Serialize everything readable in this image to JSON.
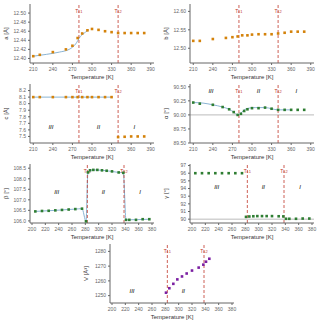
{
  "chart_data": [
    {
      "type": "scatter",
      "xlabel": "Temperature [K]",
      "ylabel": "a [Å]",
      "xlim": [
        205,
        395
      ],
      "xticks": [
        210,
        240,
        270,
        300,
        330,
        360,
        390
      ],
      "ylim": [
        12.39,
        12.52
      ],
      "yticks": [
        {
          "value": 12.4,
          "label": "12.40"
        },
        12.42,
        12.44,
        12.46,
        12.48,
        {
          "value": 12.5,
          "label": "12.50"
        }
      ],
      "grid": false,
      "series": [
        {
          "type": "line",
          "color": "#8ab4d4",
          "line_style": "solid",
          "x": [
            210,
            230,
            250,
            265,
            275,
            282,
            290,
            295
          ],
          "values": [
            12.405,
            12.409,
            12.414,
            12.42,
            12.432,
            12.448,
            12.458,
            12.463
          ]
        },
        {
          "type": "scatter",
          "color": "#d4820a",
          "marker": "square",
          "x": [
            210,
            220,
            240,
            260,
            270,
            278,
            285,
            293,
            300,
            310,
            320,
            330,
            340,
            350,
            360,
            370,
            380
          ],
          "values": [
            12.405,
            12.408,
            12.414,
            12.42,
            12.428,
            12.445,
            12.455,
            12.462,
            12.465,
            12.463,
            12.46,
            12.458,
            12.456,
            12.456,
            12.456,
            12.456,
            12.456
          ]
        }
      ],
      "vlines": [
        {
          "x": 280,
          "label": "Tc1",
          "color": "#c0392b",
          "line_style": "dashed"
        },
        {
          "x": 340,
          "label": "Tc2",
          "color": "#c0392b",
          "line_style": "dashed"
        }
      ],
      "annotations": []
    },
    {
      "type": "scatter",
      "xlabel": "Temperature [K]",
      "ylabel": "b [Å]",
      "xlim": [
        205,
        395
      ],
      "xticks": [
        210,
        240,
        270,
        300,
        330,
        360,
        390
      ],
      "ylim": [
        12.46,
        12.62
      ],
      "yticks": [
        {
          "value": 12.5,
          "label": "12.50"
        },
        12.55,
        {
          "value": 12.6,
          "label": "12.60"
        }
      ],
      "grid": false,
      "series": [
        {
          "type": "scatter",
          "color": "#d4820a",
          "marker": "square",
          "x": [
            210,
            220,
            240,
            260,
            270,
            278,
            285,
            293,
            300,
            310,
            320,
            330,
            340,
            350,
            360,
            370,
            380
          ],
          "values": [
            12.52,
            12.52,
            12.525,
            12.528,
            12.53,
            12.532,
            12.535,
            12.535,
            12.537,
            12.538,
            12.538,
            12.538,
            12.54,
            12.542,
            12.545,
            12.545,
            12.545
          ]
        }
      ],
      "vlines": [
        {
          "x": 280,
          "label": "Tc1",
          "color": "#c0392b",
          "line_style": "dashed"
        },
        {
          "x": 340,
          "label": "Tc2",
          "color": "#c0392b",
          "line_style": "dashed"
        }
      ],
      "annotations": []
    },
    {
      "type": "scatter",
      "xlabel": "Temperature [K]",
      "ylabel": "c [Å]",
      "xlim": [
        205,
        395
      ],
      "xticks": [
        210,
        240,
        270,
        300,
        330,
        360,
        390
      ],
      "ylim": [
        7.4,
        8.3
      ],
      "yticks": [
        7.5,
        7.6,
        7.7,
        7.8,
        7.9,
        {
          "value": 8.0,
          "label": "8.0"
        },
        8.1,
        8.2
      ],
      "grid": false,
      "series": [
        {
          "type": "line",
          "color": "#8ab4d4",
          "line_style": "solid",
          "x": [
            210,
            330
          ],
          "values": [
            8.1,
            8.1
          ]
        },
        {
          "type": "scatter",
          "color": "#d4820a",
          "marker": "square",
          "x": [
            210,
            220,
            240,
            260,
            270,
            278,
            285,
            293,
            300,
            310,
            320,
            330,
            340,
            350,
            360,
            370,
            380
          ],
          "values": [
            8.1,
            8.1,
            8.1,
            8.1,
            8.1,
            8.1,
            8.1,
            8.1,
            8.1,
            8.1,
            8.1,
            8.1,
            7.49,
            7.495,
            7.5,
            7.5,
            7.5
          ]
        }
      ],
      "vlines": [
        {
          "x": 280,
          "label": "Tc1",
          "color": "#c0392b",
          "line_style": "dashed"
        },
        {
          "x": 340,
          "label": "Tc2",
          "color": "#c0392b",
          "line_style": "dashed"
        }
      ],
      "annotations": [
        {
          "text": "III",
          "x": 237,
          "y": 7.65
        },
        {
          "text": "II",
          "x": 310,
          "y": 7.65
        },
        {
          "text": "I",
          "x": 365,
          "y": 7.65
        }
      ]
    },
    {
      "type": "scatter",
      "xlabel": "Temperature [K]",
      "ylabel": "α [°]",
      "xlim": [
        205,
        395
      ],
      "xticks": [
        210,
        240,
        270,
        300,
        330,
        360,
        390
      ],
      "ylim": [
        89.5,
        90.55
      ],
      "yticks": [
        {
          "value": 89.5,
          "label": "89.50"
        },
        89.75,
        {
          "value": 90.0,
          "label": "90.00"
        },
        90.25,
        {
          "value": 90.5,
          "label": "90.50"
        }
      ],
      "grid": false,
      "series": [
        {
          "type": "line",
          "color": "#8ab4d4",
          "line_style": "solid",
          "x": [
            210,
            225,
            240,
            255,
            265,
            272,
            278,
            282,
            287,
            295,
            305,
            320,
            340,
            360
          ],
          "values": [
            90.22,
            90.21,
            90.18,
            90.14,
            90.1,
            90.05,
            90.0,
            90.02,
            90.08,
            90.12,
            90.13,
            90.13,
            90.09,
            90.09
          ]
        },
        {
          "type": "scatter",
          "color": "#2e7d32",
          "marker": "square",
          "x": [
            210,
            220,
            240,
            255,
            265,
            272,
            278,
            283,
            288,
            293,
            300,
            310,
            320,
            330,
            340,
            350,
            360,
            370,
            380
          ],
          "values": [
            90.22,
            90.2,
            90.18,
            90.14,
            90.1,
            90.05,
            90.0,
            90.02,
            90.07,
            90.1,
            90.12,
            90.12,
            90.13,
            90.11,
            90.09,
            90.09,
            90.09,
            90.09,
            90.09
          ]
        }
      ],
      "hline": {
        "y": 90.0,
        "color": "#aaaaaa"
      },
      "vlines": [
        {
          "x": 280,
          "label": "Tc1",
          "color": "#c0392b",
          "line_style": "dashed"
        },
        {
          "x": 340,
          "label": "Tc2",
          "color": "#c0392b",
          "line_style": "dashed"
        }
      ],
      "annotations": [
        {
          "text": "III",
          "x": 237,
          "y": 90.43
        },
        {
          "text": "II",
          "x": 310,
          "y": 90.43
        },
        {
          "text": "I",
          "x": 368,
          "y": 90.43
        }
      ]
    },
    {
      "type": "scatter",
      "xlabel": "Temperature [K]",
      "ylabel": "β [°]",
      "xlim": [
        197,
        383
      ],
      "xticks": [
        200,
        220,
        240,
        260,
        280,
        300,
        320,
        340,
        360,
        380
      ],
      "ylim": [
        105.9,
        108.7
      ],
      "yticks": [
        {
          "value": 106.0,
          "label": "106.0"
        },
        106.5,
        {
          "value": 107.0,
          "label": "107.0"
        },
        107.5,
        {
          "value": 108.0,
          "label": "108.0"
        },
        108.5
      ],
      "grid": false,
      "series": [
        {
          "type": "line",
          "color": "#8ab4d4",
          "line_style": "solid",
          "x": [
            205,
            235,
            265,
            275,
            281,
            284,
            292,
            312,
            330,
            337,
            341,
            376
          ],
          "values": [
            106.45,
            106.5,
            106.56,
            106.58,
            105.98,
            108.35,
            108.42,
            108.38,
            108.3,
            108.28,
            106.05,
            106.08
          ]
        },
        {
          "type": "scatter",
          "color": "#2e7d32",
          "marker": "square",
          "x": [
            205,
            215,
            225,
            235,
            245,
            255,
            265,
            275,
            281,
            284,
            287,
            292,
            298,
            305,
            312,
            320,
            330,
            337,
            341,
            346,
            356,
            366,
            376
          ],
          "values": [
            106.45,
            106.47,
            106.48,
            106.5,
            106.52,
            106.54,
            106.56,
            106.58,
            105.98,
            108.3,
            108.4,
            108.42,
            108.42,
            108.4,
            108.38,
            108.35,
            108.3,
            108.28,
            106.05,
            106.05,
            106.05,
            106.08,
            106.08
          ]
        }
      ],
      "vlines": [
        {
          "x": 283,
          "label": "Tc1",
          "color": "#c0392b",
          "line_style": "dashed"
        },
        {
          "x": 338,
          "label": "Tc2",
          "color": "#c0392b",
          "line_style": "dashed"
        }
      ],
      "annotations": [
        {
          "text": "III",
          "x": 237,
          "y": 107.35
        },
        {
          "text": "II",
          "x": 307,
          "y": 107.35
        },
        {
          "text": "I",
          "x": 362,
          "y": 107.35
        }
      ]
    },
    {
      "type": "scatter",
      "xlabel": "Temperature [K]",
      "ylabel": "γ [°]",
      "xlim": [
        197,
        383
      ],
      "xticks": [
        200,
        220,
        240,
        260,
        280,
        300,
        320,
        340,
        360,
        380
      ],
      "ylim": [
        89.5,
        97.2
      ],
      "yticks": [
        90,
        91,
        92,
        93,
        94,
        95,
        96,
        97
      ],
      "grid": false,
      "series": [
        {
          "type": "scatter",
          "color": "#2e7d32",
          "marker": "square",
          "x": [
            205,
            215,
            225,
            235,
            245,
            255,
            265,
            275,
            281,
            286,
            292,
            298,
            305,
            312,
            320,
            330,
            337,
            341,
            346,
            356,
            366,
            376
          ],
          "values": [
            96.0,
            96.0,
            96.0,
            96.0,
            96.0,
            96.0,
            96.0,
            96.0,
            90.3,
            90.35,
            90.38,
            90.4,
            90.4,
            90.4,
            90.4,
            90.38,
            90.36,
            90.05,
            90.05,
            90.05,
            90.08,
            90.08
          ]
        }
      ],
      "hline": {
        "y": 90.0,
        "color": "#aaaaaa"
      },
      "vlines": [
        {
          "x": 283,
          "label": "Tc1",
          "color": "#c0392b",
          "line_style": "dashed"
        },
        {
          "x": 338,
          "label": "Tc2",
          "color": "#c0392b",
          "line_style": "dashed"
        }
      ],
      "annotations": [
        {
          "text": "III",
          "x": 237,
          "y": 94.2
        },
        {
          "text": "II",
          "x": 307,
          "y": 94.2
        },
        {
          "text": "I",
          "x": 362,
          "y": 94.2
        }
      ]
    },
    {
      "type": "scatter",
      "xlabel": "Temperature [K]",
      "ylabel": "V [Å³]",
      "xlim": [
        197,
        383
      ],
      "xticks": [
        200,
        220,
        240,
        260,
        280,
        300,
        320,
        340,
        360,
        380
      ],
      "ylim": [
        1245,
        1285
      ],
      "yticks": [
        1250,
        1260,
        1270,
        1280
      ],
      "grid": false,
      "series": [
        {
          "type": "scatter",
          "color": "#7b1fa2",
          "marker": "square",
          "x": [
            281,
            286,
            292,
            298,
            305,
            312,
            320,
            330,
            337,
            341,
            346
          ],
          "values": [
            1252,
            1255,
            1258,
            1261,
            1263,
            1265,
            1267,
            1269,
            1271,
            1273,
            1275
          ]
        }
      ],
      "vlines": [
        {
          "x": 283,
          "label": "Tc1",
          "color": "#c0392b",
          "line_style": "dashed"
        },
        {
          "x": 338,
          "label": "Tc2",
          "color": "#c0392b",
          "line_style": "dashed"
        }
      ],
      "annotations": [
        {
          "text": "III",
          "x": 230,
          "y": 1253
        },
        {
          "text": "II",
          "x": 307,
          "y": 1253
        }
      ]
    }
  ]
}
